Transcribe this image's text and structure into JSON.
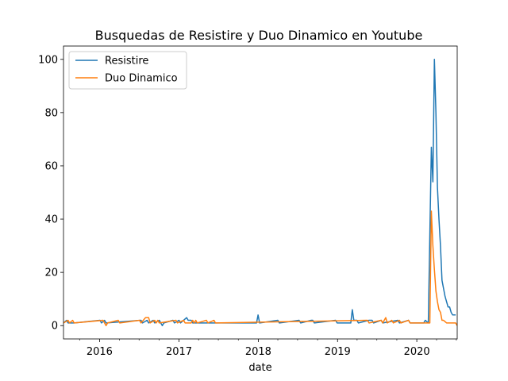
{
  "chart_data": {
    "type": "line",
    "title": "Busquedas de Resistire y Duo Dinamico en Youtube",
    "xlabel": "date",
    "ylabel": "",
    "xlim": [
      "2015-07-19",
      "2020-07-05"
    ],
    "ylim": [
      -5,
      105
    ],
    "x_ticks": [
      "2016-01-01",
      "2017-01-01",
      "2018-01-01",
      "2019-01-01",
      "2020-01-01"
    ],
    "x_tick_labels": [
      "2016",
      "2017",
      "2018",
      "2019",
      "2020"
    ],
    "y_ticks": [
      0,
      20,
      40,
      60,
      80,
      100
    ],
    "grid": false,
    "legend_position": "top-left",
    "series": [
      {
        "name": "Resistire",
        "color": "#1f77b4",
        "points": [
          [
            "2015-07-19",
            1
          ],
          [
            "2015-08-02",
            2
          ],
          [
            "2015-08-09",
            1
          ],
          [
            "2015-09-06",
            1
          ],
          [
            "2016-01-03",
            2
          ],
          [
            "2016-01-10",
            1
          ],
          [
            "2016-01-24",
            2
          ],
          [
            "2016-01-31",
            1
          ],
          [
            "2016-07-10",
            2
          ],
          [
            "2016-07-17",
            1
          ],
          [
            "2016-08-07",
            2
          ],
          [
            "2016-08-14",
            1
          ],
          [
            "2016-09-04",
            2
          ],
          [
            "2016-09-11",
            1
          ],
          [
            "2016-10-02",
            2
          ],
          [
            "2016-10-16",
            0
          ],
          [
            "2016-10-23",
            1
          ],
          [
            "2016-12-04",
            2
          ],
          [
            "2016-12-11",
            1
          ],
          [
            "2017-01-01",
            2
          ],
          [
            "2017-01-08",
            1
          ],
          [
            "2017-02-05",
            3
          ],
          [
            "2017-02-12",
            2
          ],
          [
            "2017-02-26",
            2
          ],
          [
            "2017-03-05",
            1
          ],
          [
            "2017-12-24",
            1
          ],
          [
            "2017-12-31",
            4
          ],
          [
            "2018-01-07",
            1
          ],
          [
            "2018-04-01",
            2
          ],
          [
            "2018-04-08",
            1
          ],
          [
            "2018-07-08",
            2
          ],
          [
            "2018-07-15",
            1
          ],
          [
            "2018-09-02",
            2
          ],
          [
            "2018-09-09",
            2
          ],
          [
            "2018-09-16",
            1
          ],
          [
            "2018-12-23",
            2
          ],
          [
            "2018-12-30",
            1
          ],
          [
            "2019-03-03",
            1
          ],
          [
            "2019-03-10",
            6
          ],
          [
            "2019-03-17",
            2
          ],
          [
            "2019-03-31",
            2
          ],
          [
            "2019-04-07",
            1
          ],
          [
            "2019-05-26",
            2
          ],
          [
            "2019-06-09",
            2
          ],
          [
            "2019-06-16",
            1
          ],
          [
            "2019-07-21",
            2
          ],
          [
            "2019-07-28",
            1
          ],
          [
            "2019-10-06",
            2
          ],
          [
            "2019-10-13",
            1
          ],
          [
            "2019-11-24",
            2
          ],
          [
            "2019-12-01",
            1
          ],
          [
            "2020-02-02",
            1
          ],
          [
            "2020-02-09",
            2
          ],
          [
            "2020-02-23",
            1
          ],
          [
            "2020-03-08",
            67
          ],
          [
            "2020-03-15",
            54
          ],
          [
            "2020-03-22",
            100
          ],
          [
            "2020-03-29",
            80
          ],
          [
            "2020-04-05",
            52
          ],
          [
            "2020-04-12",
            40
          ],
          [
            "2020-04-19",
            30
          ],
          [
            "2020-04-26",
            17
          ],
          [
            "2020-05-03",
            14
          ],
          [
            "2020-05-10",
            11
          ],
          [
            "2020-05-17",
            9
          ],
          [
            "2020-05-24",
            7
          ],
          [
            "2020-05-31",
            7
          ],
          [
            "2020-06-07",
            5
          ],
          [
            "2020-06-14",
            4
          ],
          [
            "2020-06-21",
            4
          ],
          [
            "2020-06-28",
            4
          ]
        ]
      },
      {
        "name": "Duo Dinamico",
        "color": "#ff7f0e",
        "points": [
          [
            "2015-07-19",
            1
          ],
          [
            "2015-08-09",
            2
          ],
          [
            "2015-08-16",
            1
          ],
          [
            "2015-08-30",
            2
          ],
          [
            "2015-09-06",
            1
          ],
          [
            "2016-01-17",
            2
          ],
          [
            "2016-01-31",
            0
          ],
          [
            "2016-02-07",
            1
          ],
          [
            "2016-03-27",
            2
          ],
          [
            "2016-04-03",
            1
          ],
          [
            "2016-07-03",
            2
          ],
          [
            "2016-07-10",
            1
          ],
          [
            "2016-07-31",
            3
          ],
          [
            "2016-08-14",
            3
          ],
          [
            "2016-08-21",
            1
          ],
          [
            "2016-09-11",
            2
          ],
          [
            "2016-09-18",
            1
          ],
          [
            "2016-09-25",
            2
          ],
          [
            "2016-10-02",
            1
          ],
          [
            "2016-12-18",
            2
          ],
          [
            "2016-12-25",
            1
          ],
          [
            "2017-01-22",
            2
          ],
          [
            "2017-01-29",
            1
          ],
          [
            "2017-02-26",
            1
          ],
          [
            "2017-03-05",
            2
          ],
          [
            "2017-03-12",
            1
          ],
          [
            "2017-03-19",
            2
          ],
          [
            "2017-03-26",
            1
          ],
          [
            "2017-05-07",
            2
          ],
          [
            "2017-05-14",
            1
          ],
          [
            "2017-06-11",
            2
          ],
          [
            "2017-06-18",
            1
          ],
          [
            "2019-05-19",
            2
          ],
          [
            "2019-05-26",
            1
          ],
          [
            "2019-07-21",
            2
          ],
          [
            "2019-07-28",
            1
          ],
          [
            "2019-08-11",
            3
          ],
          [
            "2019-08-18",
            1
          ],
          [
            "2019-09-08",
            2
          ],
          [
            "2019-09-15",
            1
          ],
          [
            "2019-10-13",
            2
          ],
          [
            "2019-10-20",
            1
          ],
          [
            "2019-11-24",
            2
          ],
          [
            "2019-12-01",
            1
          ],
          [
            "2020-02-23",
            1
          ],
          [
            "2020-03-01",
            1
          ],
          [
            "2020-03-08",
            43
          ],
          [
            "2020-03-15",
            30
          ],
          [
            "2020-03-22",
            21
          ],
          [
            "2020-03-29",
            13
          ],
          [
            "2020-04-05",
            9
          ],
          [
            "2020-04-12",
            6
          ],
          [
            "2020-04-19",
            5
          ],
          [
            "2020-04-26",
            2
          ],
          [
            "2020-05-03",
            2
          ],
          [
            "2020-05-17",
            1
          ],
          [
            "2020-06-28",
            1
          ],
          [
            "2020-07-05",
            0
          ]
        ]
      }
    ]
  }
}
